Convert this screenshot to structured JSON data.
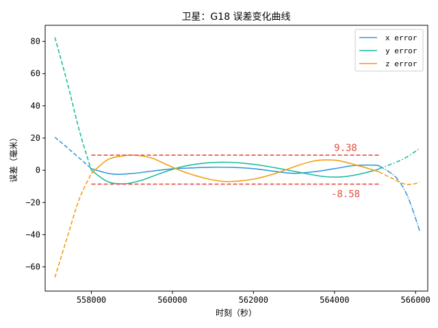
{
  "chart_data": {
    "type": "line",
    "title": "卫星：G18 误差变化曲线",
    "xlabel": "时刻（秒）",
    "ylabel": "误差（毫米）",
    "xlim": [
      556860,
      566300
    ],
    "ylim": [
      -75,
      90
    ],
    "xticks": [
      558000,
      560000,
      562000,
      564000,
      566000
    ],
    "yticks": [
      -60,
      -40,
      -20,
      0,
      20,
      40,
      60,
      80
    ],
    "xtick_labels": [
      "558000",
      "560000",
      "562000",
      "564000",
      "566000"
    ],
    "ytick_labels": [
      "−60",
      "−40",
      "−20",
      "0",
      "20",
      "40",
      "60",
      "80"
    ],
    "fit_range": [
      558000,
      565100
    ],
    "legend_position": "top-right",
    "series": [
      {
        "name": "x error",
        "color": "#3498db",
        "points": [
          [
            557100,
            20.5
          ],
          [
            557500,
            12
          ],
          [
            558000,
            1
          ],
          [
            558500,
            -2.3
          ],
          [
            559000,
            -2
          ],
          [
            559500,
            -0.5
          ],
          [
            560000,
            0.9
          ],
          [
            560500,
            1.5
          ],
          [
            561000,
            1.9
          ],
          [
            561500,
            1.8
          ],
          [
            562000,
            1
          ],
          [
            562500,
            -0.6
          ],
          [
            563000,
            -1.9
          ],
          [
            563500,
            -0.9
          ],
          [
            564000,
            1
          ],
          [
            564500,
            3
          ],
          [
            565000,
            3.2
          ],
          [
            565100,
            2.7
          ],
          [
            565500,
            -4
          ],
          [
            565800,
            -16
          ],
          [
            566100,
            -37.5
          ]
        ]
      },
      {
        "name": "y error",
        "color": "#1abc9c",
        "points": [
          [
            557100,
            82.5
          ],
          [
            557400,
            55
          ],
          [
            557700,
            25
          ],
          [
            558000,
            0
          ],
          [
            558400,
            -7
          ],
          [
            558800,
            -8.4
          ],
          [
            559200,
            -6.5
          ],
          [
            559700,
            -2
          ],
          [
            560200,
            2
          ],
          [
            560700,
            4.2
          ],
          [
            561200,
            5
          ],
          [
            561700,
            4.5
          ],
          [
            562200,
            3
          ],
          [
            562700,
            0.8
          ],
          [
            563200,
            -1.6
          ],
          [
            563700,
            -3.8
          ],
          [
            564100,
            -4.2
          ],
          [
            564500,
            -3
          ],
          [
            565000,
            0
          ],
          [
            565100,
            1
          ],
          [
            565500,
            4.8
          ],
          [
            565800,
            8.5
          ],
          [
            566100,
            13.5
          ]
        ]
      },
      {
        "name": "z error",
        "color": "#f39c12",
        "points": [
          [
            557100,
            -66.5
          ],
          [
            557400,
            -42
          ],
          [
            557700,
            -18
          ],
          [
            558000,
            -2
          ],
          [
            558400,
            6.5
          ],
          [
            558800,
            9
          ],
          [
            559100,
            9.3
          ],
          [
            559500,
            7.5
          ],
          [
            559900,
            3
          ],
          [
            560400,
            -2
          ],
          [
            560900,
            -5.5
          ],
          [
            561300,
            -7
          ],
          [
            561700,
            -6.5
          ],
          [
            562100,
            -5
          ],
          [
            562600,
            -1.5
          ],
          [
            563100,
            3
          ],
          [
            563500,
            5.8
          ],
          [
            563800,
            6.4
          ],
          [
            564100,
            6
          ],
          [
            564500,
            3.5
          ],
          [
            564900,
            0.6
          ],
          [
            565100,
            -1
          ],
          [
            565400,
            -4.8
          ],
          [
            565700,
            -8.3
          ],
          [
            565900,
            -8.7
          ],
          [
            566100,
            -7.5
          ]
        ]
      }
    ],
    "threshold_lines": [
      {
        "value": 9.38,
        "label": "9.38",
        "x_range": [
          558000,
          565100
        ],
        "color": "#e74c3c"
      },
      {
        "value": -8.58,
        "label": "-8.58",
        "x_range": [
          558000,
          565100
        ],
        "color": "#e74c3c"
      }
    ]
  }
}
